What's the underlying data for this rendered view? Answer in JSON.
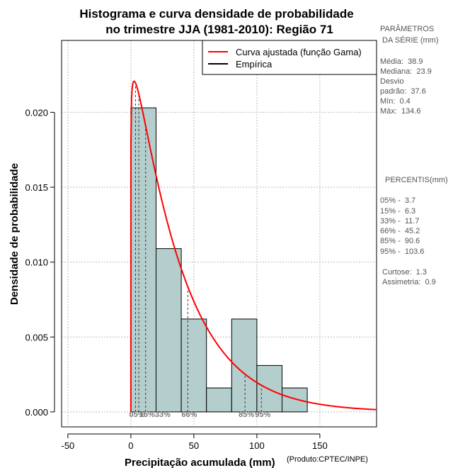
{
  "chart_data": {
    "type": "bar",
    "title_lines": [
      "Histograma e curva densidade de probabilidade",
      "no trimestre JJA (1981-2010): Região 71"
    ],
    "xlabel": "Precipitação acumulada (mm)",
    "credit": "(Produto:CPTEC/INPE)",
    "ylabel": "Densidade de probabilidade",
    "xlim": [
      -55,
      195
    ],
    "ylim": [
      -0.001,
      0.0248
    ],
    "x_ticks": [
      -50,
      0,
      50,
      100,
      150
    ],
    "x_tick_labels": [
      "-50",
      "0",
      "50",
      "100",
      "150"
    ],
    "y_ticks": [
      0,
      0.005,
      0.01,
      0.015,
      0.02
    ],
    "y_tick_labels": [
      "0.000",
      "0.005",
      "0.010",
      "0.015",
      "0.020"
    ],
    "grid": true,
    "histogram": {
      "bin_edges": [
        0,
        20,
        40,
        60,
        80,
        100,
        120,
        140
      ],
      "density": [
        0.0203,
        0.0109,
        0.0062,
        0.0016,
        0.0062,
        0.0031,
        0.0016
      ]
    },
    "gamma_fit": {
      "shape": 1.07,
      "scale": 36.36
    },
    "percentile_lines": [
      3.7,
      6.3,
      11.7,
      45.2,
      90.6,
      103.6
    ],
    "percentile_labels": [
      {
        "x": 3.7,
        "text": "05%"
      },
      {
        "x": 11.7,
        "text": "15%33%"
      },
      {
        "x": 45.2,
        "text": "66%"
      },
      {
        "x": 90.6,
        "text": "85%"
      },
      {
        "x": 103.6,
        "text": "95%"
      }
    ],
    "legend": [
      {
        "label": "Curva ajustada (função Gama)",
        "color": "#ff0000"
      },
      {
        "label": "Empírica",
        "color": "#000000"
      }
    ],
    "colors": {
      "bar_fill": "#b4cdcd",
      "curve": "#ff0000",
      "grid": "#bbbbbb"
    }
  },
  "side_panel": {
    "parameters_title": [
      "PARÂMETROS",
      " DA SÉRIE (mm)"
    ],
    "parameters": [
      "Média:  38.9",
      "Mediana:  23.9",
      "Desvio",
      "padrão:  37.6",
      "Mín:  0.4",
      "Máx:  134.6"
    ],
    "percentis_title": "PERCENTIS(mm)",
    "percentis": [
      "05% -  3.7",
      "15% -  6.3",
      "33% -  11.7",
      "66% -  45.2",
      "85% -  90.6",
      "95% -  103.6"
    ],
    "stats": [
      "Curtose:  1.3",
      "Assimetria:  0.9"
    ]
  }
}
